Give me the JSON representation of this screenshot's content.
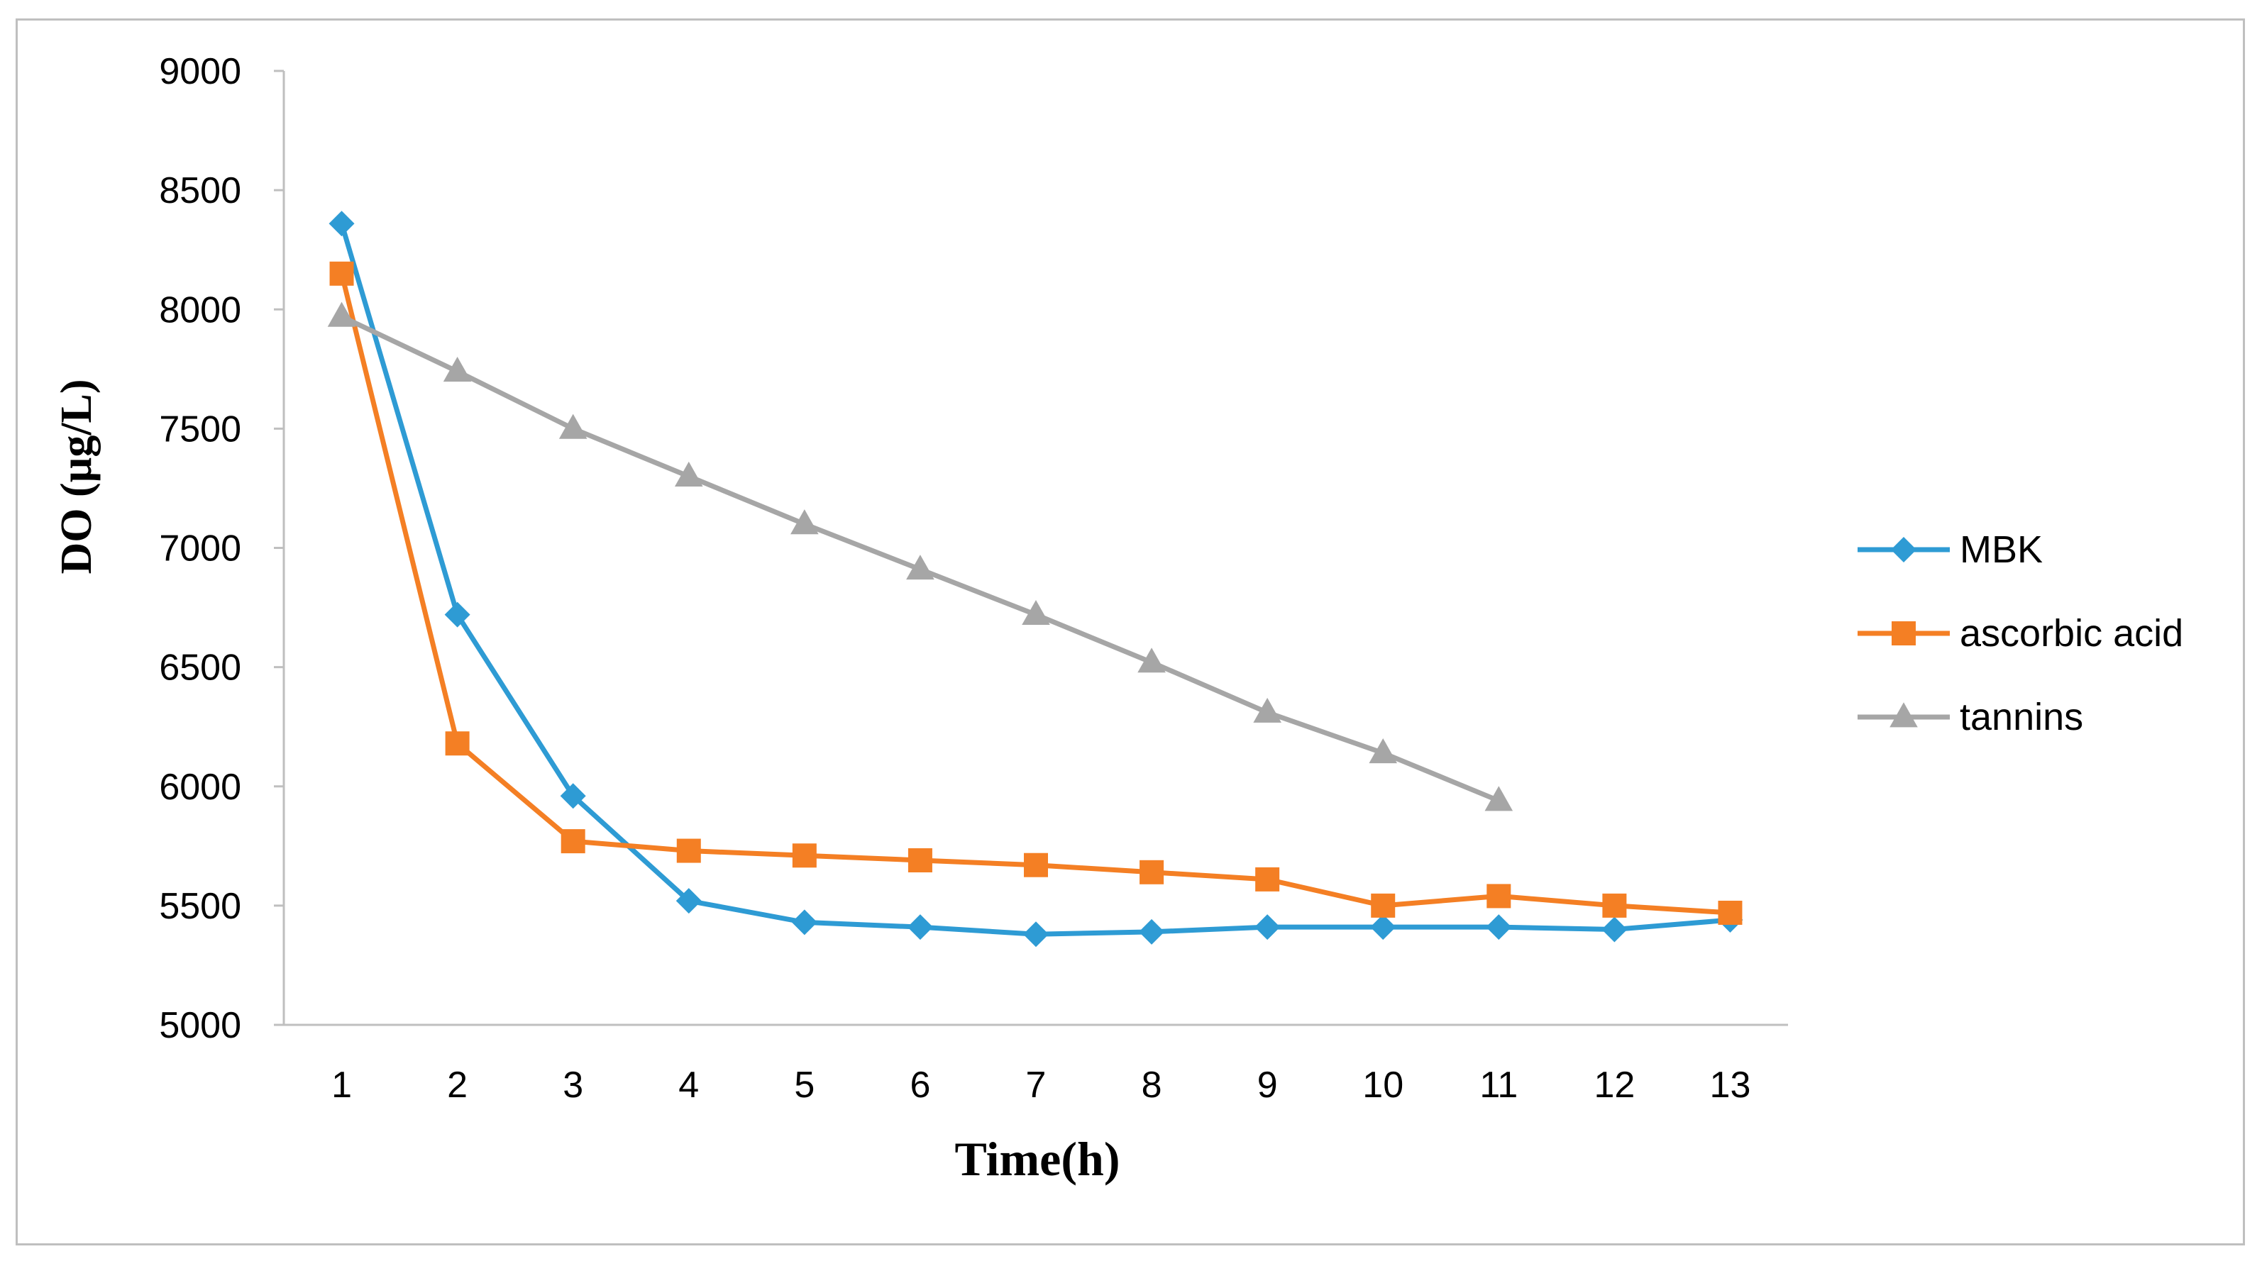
{
  "chart_data": {
    "type": "line",
    "title": "",
    "xlabel": "Time(h)",
    "ylabel": "DO (µg/L)",
    "categories": [
      "1",
      "2",
      "3",
      "4",
      "5",
      "6",
      "7",
      "8",
      "9",
      "10",
      "11",
      "12",
      "13"
    ],
    "ylim": [
      5000,
      9000
    ],
    "yticks": [
      5000,
      5500,
      6000,
      6500,
      7000,
      7500,
      8000,
      8500,
      9000
    ],
    "grid": false,
    "legend_position": "right",
    "series": [
      {
        "name": "MBK",
        "color": "#2e9bd4",
        "marker": "diamond",
        "values": [
          8360,
          6720,
          5960,
          5520,
          5430,
          5410,
          5380,
          5390,
          5410,
          5410,
          5410,
          5400,
          5440
        ]
      },
      {
        "name": "ascorbic acid",
        "color": "#f47f24",
        "marker": "square",
        "values": [
          8150,
          6180,
          5770,
          5730,
          5710,
          5690,
          5670,
          5640,
          5610,
          5500,
          5540,
          5500,
          5470
        ]
      },
      {
        "name": "tannins",
        "color": "#a6a6a6",
        "marker": "triangle",
        "values": [
          7970,
          7740,
          7500,
          7300,
          7100,
          6910,
          6720,
          6520,
          6310,
          6140,
          5940,
          null,
          null
        ]
      }
    ]
  }
}
